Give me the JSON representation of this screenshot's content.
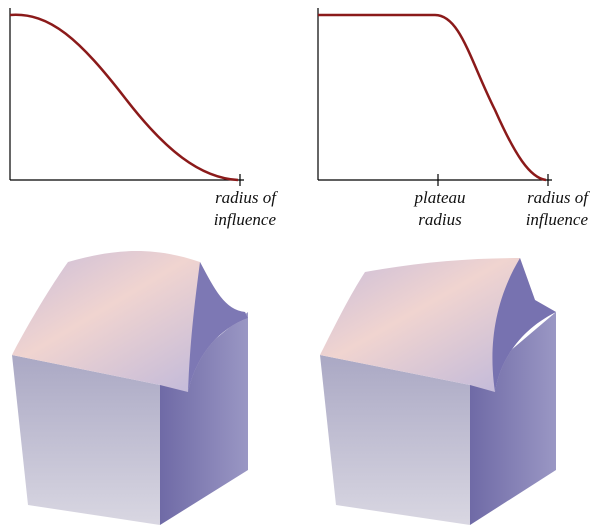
{
  "left_plot": {
    "radius_label": [
      "radius of",
      "influence"
    ]
  },
  "right_plot": {
    "plateau_label": [
      "plateau",
      "radius"
    ],
    "radius_label": [
      "radius of",
      "influence"
    ]
  }
}
